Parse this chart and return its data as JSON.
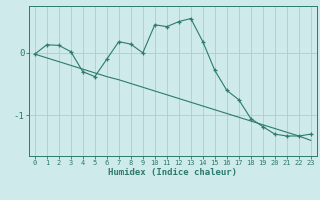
{
  "xlabel": "Humidex (Indice chaleur)",
  "bg_color": "#ceeaea",
  "line_color": "#2d7a6e",
  "grid_color": "#aacfcf",
  "x_data": [
    0,
    1,
    2,
    3,
    4,
    5,
    6,
    7,
    8,
    9,
    10,
    11,
    12,
    13,
    14,
    15,
    16,
    17,
    18,
    19,
    20,
    21,
    22,
    23
  ],
  "y_curve": [
    -0.02,
    0.13,
    0.12,
    0.02,
    -0.3,
    -0.38,
    -0.1,
    0.18,
    0.14,
    0.0,
    0.45,
    0.42,
    0.5,
    0.55,
    0.18,
    -0.28,
    -0.6,
    -0.75,
    -1.05,
    -1.18,
    -1.3,
    -1.33,
    -1.33,
    -1.3
  ],
  "y_trend": [
    -0.02,
    -0.08,
    -0.14,
    -0.2,
    -0.26,
    -0.32,
    -0.38,
    -0.43,
    -0.49,
    -0.55,
    -0.61,
    -0.67,
    -0.73,
    -0.79,
    -0.85,
    -0.91,
    -0.97,
    -1.03,
    -1.09,
    -1.15,
    -1.21,
    -1.27,
    -1.33,
    -1.4
  ],
  "xlim": [
    -0.5,
    23.5
  ],
  "ylim": [
    -1.65,
    0.75
  ],
  "yticks": [
    0,
    -1
  ],
  "ytick_labels": [
    "0",
    "-1"
  ],
  "xticks": [
    0,
    1,
    2,
    3,
    4,
    5,
    6,
    7,
    8,
    9,
    10,
    11,
    12,
    13,
    14,
    15,
    16,
    17,
    18,
    19,
    20,
    21,
    22,
    23
  ]
}
